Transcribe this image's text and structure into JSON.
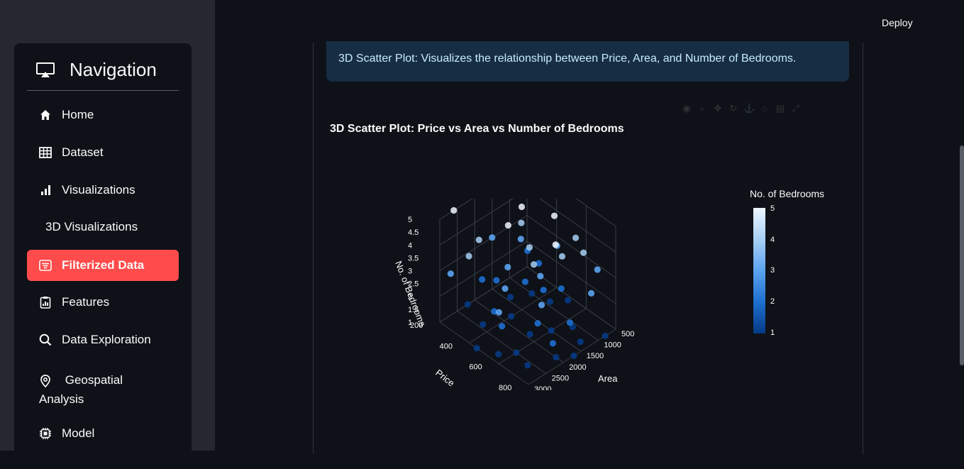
{
  "header": {
    "deploy_label": "Deploy"
  },
  "nav": {
    "title": "Navigation",
    "items": [
      {
        "label": "Home",
        "icon": "home-icon"
      },
      {
        "label": "Dataset",
        "icon": "table-icon"
      },
      {
        "label": "Visualizations",
        "icon": "bar-chart-icon"
      },
      {
        "label": "3D Visualizations",
        "icon": ""
      },
      {
        "label": "Filterized Data",
        "icon": "filter-list-icon",
        "active": true
      },
      {
        "label": "Features",
        "icon": "clipboard-chart-icon"
      },
      {
        "label": "Data Exploration",
        "icon": "search-icon"
      },
      {
        "label": "Geospatial Analysis",
        "icon": "location-pin-icon"
      },
      {
        "label": "Model",
        "icon": "chip-icon"
      }
    ]
  },
  "info": {
    "text": "3D Scatter Plot: Visualizes the relationship between Price, Area, and Number of Bedrooms."
  },
  "chart_data": {
    "type": "scatter",
    "title": "3D Scatter Plot: Price vs Area vs Number of Bedrooms",
    "axes": {
      "x": {
        "label": "Area",
        "ticks": [
          "500",
          "1000",
          "1500",
          "2000",
          "2500",
          "3000"
        ]
      },
      "y": {
        "label": "Price",
        "ticks": [
          "200",
          "400",
          "600",
          "800"
        ]
      },
      "z": {
        "label": "No. of Bedrooms",
        "ticks": [
          "1",
          "1.5",
          "2",
          "2.5",
          "3",
          "3.5",
          "4",
          "4.5",
          "5"
        ]
      }
    },
    "colorbar": {
      "title": "No. of Bedrooms",
      "ticks": [
        "1",
        "2",
        "3",
        "4",
        "5"
      ],
      "colorscale": [
        "#053a85",
        "#1e6fd0",
        "#5ba3ef",
        "#a8d0f5",
        "#eef6ff"
      ]
    },
    "points": [
      {
        "area": 600,
        "price": 300,
        "bedrooms": 5
      },
      {
        "area": 900,
        "price": 250,
        "bedrooms": 5
      },
      {
        "area": 1200,
        "price": 550,
        "bedrooms": 5
      },
      {
        "area": 2600,
        "price": 200,
        "bedrooms": 5
      },
      {
        "area": 1800,
        "price": 700,
        "bedrooms": 5
      },
      {
        "area": 1500,
        "price": 400,
        "bedrooms": 5
      },
      {
        "area": 2100,
        "price": 450,
        "bedrooms": 5
      },
      {
        "area": 800,
        "price": 600,
        "bedrooms": 4
      },
      {
        "area": 1300,
        "price": 350,
        "bedrooms": 4
      },
      {
        "area": 1700,
        "price": 500,
        "bedrooms": 4
      },
      {
        "area": 2300,
        "price": 300,
        "bedrooms": 4
      },
      {
        "area": 1000,
        "price": 700,
        "bedrooms": 4
      },
      {
        "area": 2000,
        "price": 600,
        "bedrooms": 4
      },
      {
        "area": 1400,
        "price": 650,
        "bedrooms": 4
      },
      {
        "area": 2800,
        "price": 350,
        "bedrooms": 4
      },
      {
        "area": 700,
        "price": 450,
        "bedrooms": 3
      },
      {
        "area": 1100,
        "price": 300,
        "bedrooms": 3
      },
      {
        "area": 1600,
        "price": 550,
        "bedrooms": 3
      },
      {
        "area": 1900,
        "price": 400,
        "bedrooms": 3
      },
      {
        "area": 2400,
        "price": 500,
        "bedrooms": 3
      },
      {
        "area": 2900,
        "price": 250,
        "bedrooms": 3
      },
      {
        "area": 1200,
        "price": 800,
        "bedrooms": 3
      },
      {
        "area": 2200,
        "price": 700,
        "bedrooms": 3
      },
      {
        "area": 600,
        "price": 700,
        "bedrooms": 3
      },
      {
        "area": 3000,
        "price": 600,
        "bedrooms": 3
      },
      {
        "area": 1500,
        "price": 200,
        "bedrooms": 3
      },
      {
        "area": 800,
        "price": 350,
        "bedrooms": 2
      },
      {
        "area": 1300,
        "price": 500,
        "bedrooms": 2
      },
      {
        "area": 1800,
        "price": 300,
        "bedrooms": 2
      },
      {
        "area": 2100,
        "price": 650,
        "bedrooms": 2
      },
      {
        "area": 2500,
        "price": 450,
        "bedrooms": 2
      },
      {
        "area": 1000,
        "price": 550,
        "bedrooms": 2
      },
      {
        "area": 1600,
        "price": 750,
        "bedrooms": 2
      },
      {
        "area": 2700,
        "price": 550,
        "bedrooms": 2
      },
      {
        "area": 700,
        "price": 250,
        "bedrooms": 2
      },
      {
        "area": 2000,
        "price": 250,
        "bedrooms": 2
      },
      {
        "area": 1400,
        "price": 400,
        "bedrooms": 2
      },
      {
        "area": 2300,
        "price": 800,
        "bedrooms": 2
      },
      {
        "area": 900,
        "price": 450,
        "bedrooms": 1
      },
      {
        "area": 1400,
        "price": 300,
        "bedrooms": 1
      },
      {
        "area": 1900,
        "price": 550,
        "bedrooms": 1
      },
      {
        "area": 2400,
        "price": 350,
        "bedrooms": 1
      },
      {
        "area": 1100,
        "price": 650,
        "bedrooms": 1
      },
      {
        "area": 1700,
        "price": 800,
        "bedrooms": 1
      },
      {
        "area": 2600,
        "price": 700,
        "bedrooms": 1
      },
      {
        "area": 600,
        "price": 500,
        "bedrooms": 1
      },
      {
        "area": 2200,
        "price": 200,
        "bedrooms": 1
      },
      {
        "area": 3000,
        "price": 450,
        "bedrooms": 1
      },
      {
        "area": 1300,
        "price": 750,
        "bedrooms": 1
      },
      {
        "area": 1800,
        "price": 400,
        "bedrooms": 1
      },
      {
        "area": 2800,
        "price": 550,
        "bedrooms": 1
      },
      {
        "area": 1000,
        "price": 350,
        "bedrooms": 1
      },
      {
        "area": 1500,
        "price": 600,
        "bedrooms": 1
      },
      {
        "area": 2000,
        "price": 750,
        "bedrooms": 1
      },
      {
        "area": 2500,
        "price": 600,
        "bedrooms": 1
      },
      {
        "area": 800,
        "price": 800,
        "bedrooms": 1
      }
    ]
  }
}
